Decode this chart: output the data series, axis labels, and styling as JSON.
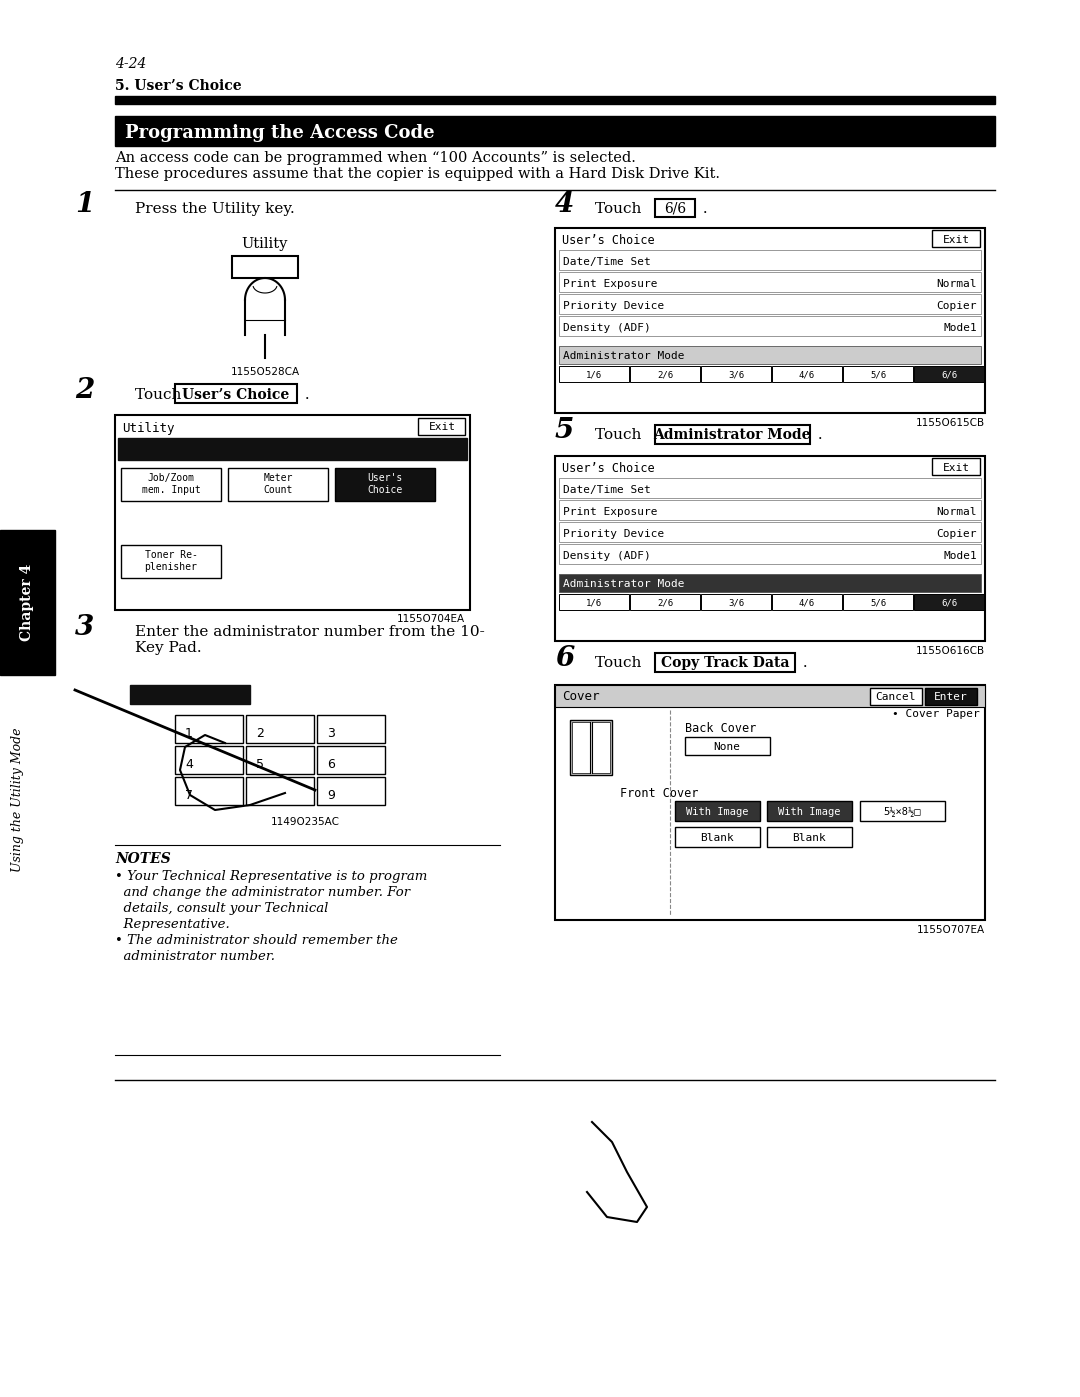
{
  "page_number": "4-24",
  "section_title": "5. User’s Choice",
  "main_title": "Programming the Access Code",
  "intro_line1": "An access code can be programmed when “100 Accounts” is selected.",
  "intro_line2": "These procedures assume that the copier is equipped with a Hard Disk Drive Kit.",
  "step1_num": "1",
  "step1_text": "Press the Utility key.",
  "step1_img_label": "Utility",
  "step1_img_code": "1155O528CA",
  "step2_num": "2",
  "step2_text": "Touch",
  "step2_btn": "User’s Choice",
  "step2_img_code": "1155O704EA",
  "step3_num": "3",
  "step3_text1": "Enter the administrator number from the 10-",
  "step3_text2": "Key Pad.",
  "step3_img_code": "1149O235AC",
  "notes_title": "NOTES",
  "note1": "• Your Technical Representative is to program",
  "note2": "  and change the administrator number. For",
  "note3": "  details, consult your Technical",
  "note4": "  Representative.",
  "note5": "• The administrator should remember the",
  "note6": "  administrator number.",
  "step4_num": "4",
  "step4_text": "Touch",
  "step4_btn": "6/6",
  "step4_img_code": "1155O615CB",
  "step5_num": "5",
  "step5_text": "Touch",
  "step5_btn": "Administrator Mode",
  "step5_img_code": "1155O616CB",
  "step6_num": "6",
  "step6_text": "Touch",
  "step6_btn": "Copy Track Data",
  "step6_img_code": "1155O707EA",
  "bg_color": "#ffffff"
}
